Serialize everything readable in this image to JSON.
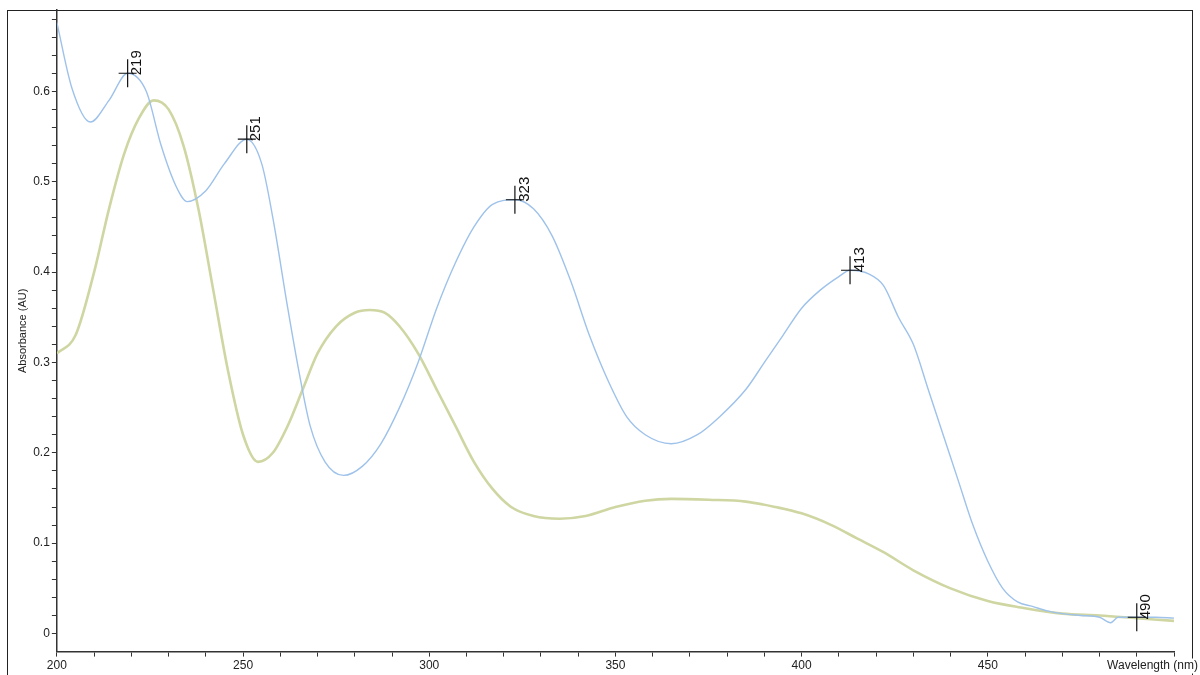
{
  "chart_data": {
    "type": "line",
    "xlabel": "Wavelength (nm)",
    "ylabel": "Absorbance (AU)",
    "series": [
      {
        "color": "#9ec2ea",
        "x": [
          200,
          204,
          209,
          214,
          219,
          224,
          228,
          232,
          235,
          240,
          245,
          251,
          255,
          258,
          262,
          265,
          268,
          272,
          277,
          282,
          287,
          292,
          297,
          302,
          307,
          312,
          317,
          323,
          328,
          333,
          338,
          343,
          348,
          353,
          358,
          365,
          372,
          378,
          385,
          390,
          395,
          400,
          405,
          410,
          413,
          418,
          422,
          426,
          430,
          434,
          438,
          442,
          446,
          450,
          454,
          458,
          462,
          466,
          470,
          475,
          480,
          483,
          485,
          490,
          495,
          500
        ],
        "values": [
          0.676,
          0.604,
          0.566,
          0.59,
          0.62,
          0.6,
          0.54,
          0.495,
          0.478,
          0.49,
          0.52,
          0.547,
          0.52,
          0.46,
          0.36,
          0.29,
          0.23,
          0.19,
          0.175,
          0.185,
          0.21,
          0.25,
          0.3,
          0.36,
          0.41,
          0.45,
          0.475,
          0.48,
          0.47,
          0.44,
          0.39,
          0.33,
          0.28,
          0.24,
          0.22,
          0.21,
          0.22,
          0.24,
          0.27,
          0.3,
          0.33,
          0.36,
          0.38,
          0.395,
          0.402,
          0.398,
          0.385,
          0.35,
          0.32,
          0.27,
          0.22,
          0.17,
          0.12,
          0.08,
          0.05,
          0.035,
          0.03,
          0.025,
          0.022,
          0.02,
          0.018,
          0.012,
          0.018,
          0.018,
          0.018,
          0.017
        ]
      },
      {
        "color": "#cfd6a2",
        "x": [
          200,
          205,
          210,
          214,
          218,
          222,
          226,
          230,
          234,
          238,
          242,
          246,
          250,
          254,
          258,
          262,
          266,
          270,
          275,
          280,
          284,
          288,
          292,
          297,
          302,
          307,
          312,
          317,
          322,
          328,
          335,
          342,
          350,
          358,
          365,
          375,
          385,
          393,
          400,
          408,
          415,
          422,
          430,
          440,
          450,
          460,
          470,
          480,
          490,
          500
        ],
        "values": [
          0.31,
          0.33,
          0.4,
          0.47,
          0.53,
          0.57,
          0.59,
          0.58,
          0.54,
          0.47,
          0.38,
          0.29,
          0.22,
          0.19,
          0.2,
          0.23,
          0.27,
          0.31,
          0.34,
          0.355,
          0.358,
          0.355,
          0.34,
          0.31,
          0.27,
          0.23,
          0.19,
          0.16,
          0.14,
          0.13,
          0.127,
          0.13,
          0.14,
          0.147,
          0.149,
          0.148,
          0.146,
          0.14,
          0.133,
          0.12,
          0.105,
          0.09,
          0.07,
          0.05,
          0.036,
          0.028,
          0.022,
          0.02,
          0.017,
          0.014
        ]
      }
    ],
    "annotations": [
      {
        "text": "219",
        "x": 219,
        "y": 0.62
      },
      {
        "text": "251",
        "x": 251,
        "y": 0.547
      },
      {
        "text": "323",
        "x": 323,
        "y": 0.48
      },
      {
        "text": "413",
        "x": 413,
        "y": 0.402
      },
      {
        "text": "490",
        "x": 490,
        "y": 0.018
      }
    ],
    "xlim": [
      200,
      500
    ],
    "xticks": [
      200,
      {
        "value": 210,
        "label": null
      },
      {
        "value": 220,
        "label": null
      },
      {
        "value": 230,
        "label": null
      },
      {
        "value": 240,
        "label": null
      },
      250,
      {
        "value": 260,
        "label": null
      },
      {
        "value": 270,
        "label": null
      },
      {
        "value": 280,
        "label": null
      },
      {
        "value": 290,
        "label": null
      },
      300,
      {
        "value": 310,
        "label": null
      },
      {
        "value": 320,
        "label": null
      },
      {
        "value": 330,
        "label": null
      },
      {
        "value": 340,
        "label": null
      },
      350,
      {
        "value": 360,
        "label": null
      },
      {
        "value": 370,
        "label": null
      },
      {
        "value": 380,
        "label": null
      },
      {
        "value": 390,
        "label": null
      },
      400,
      {
        "value": 410,
        "label": null
      },
      {
        "value": 420,
        "label": null
      },
      {
        "value": 430,
        "label": null
      },
      {
        "value": 440,
        "label": null
      },
      450,
      {
        "value": 460,
        "label": null
      },
      {
        "value": 470,
        "label": null
      },
      {
        "value": 480,
        "label": null
      },
      {
        "value": 490,
        "label": null
      },
      {
        "value": 500,
        "label": null
      }
    ],
    "ylim": [
      -0.02,
      0.69
    ],
    "yticks": [
      0,
      {
        "value": 0.02,
        "label": null
      },
      {
        "value": 0.04,
        "label": null
      },
      {
        "value": 0.06,
        "label": null
      },
      {
        "value": 0.08,
        "label": null
      },
      0.1,
      {
        "value": 0.12,
        "label": null
      },
      {
        "value": 0.14,
        "label": null
      },
      {
        "value": 0.16,
        "label": null
      },
      {
        "value": 0.18,
        "label": null
      },
      0.2,
      {
        "value": 0.22,
        "label": null
      },
      {
        "value": 0.24,
        "label": null
      },
      {
        "value": 0.26,
        "label": null
      },
      {
        "value": 0.28,
        "label": null
      },
      0.3,
      {
        "value": 0.32,
        "label": null
      },
      {
        "value": 0.34,
        "label": null
      },
      {
        "value": 0.36,
        "label": null
      },
      {
        "value": 0.38,
        "label": null
      },
      0.4,
      {
        "value": 0.42,
        "label": null
      },
      {
        "value": 0.44,
        "label": null
      },
      {
        "value": 0.46,
        "label": null
      },
      {
        "value": 0.48,
        "label": null
      },
      0.5,
      {
        "value": 0.52,
        "label": null
      },
      {
        "value": 0.54,
        "label": null
      },
      {
        "value": 0.56,
        "label": null
      },
      {
        "value": 0.58,
        "label": null
      },
      0.6,
      {
        "value": 0.62,
        "label": null
      },
      {
        "value": 0.64,
        "label": null
      },
      {
        "value": 0.66,
        "label": null
      },
      {
        "value": 0.68,
        "label": null
      }
    ],
    "grid": false,
    "legend": false,
    "marker": "none",
    "line_style": "solid"
  }
}
